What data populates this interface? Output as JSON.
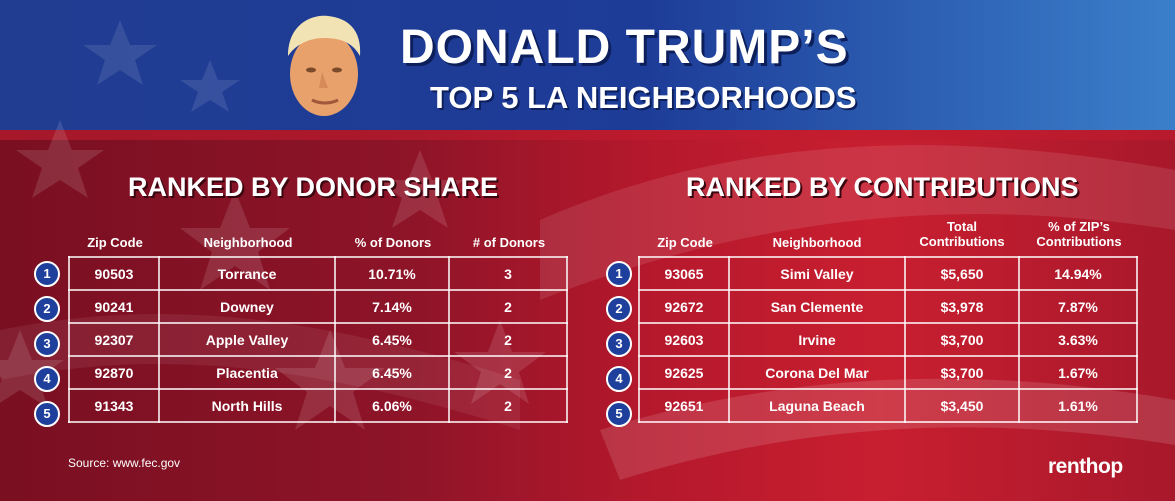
{
  "header": {
    "title_line1": "DONALD TRUMP’S",
    "title_line2": "TOP 5 LA NEIGHBORHOODS"
  },
  "left_table": {
    "title": "RANKED BY DONOR SHARE",
    "headers": [
      "Zip Code",
      "Neighborhood",
      "% of Donors",
      "# of Donors"
    ],
    "ranks": [
      "1",
      "2",
      "3",
      "4",
      "5"
    ],
    "rows": [
      [
        "90503",
        "Torrance",
        "10.71%",
        "3"
      ],
      [
        "90241",
        "Downey",
        "7.14%",
        "2"
      ],
      [
        "92307",
        "Apple Valley",
        "6.45%",
        "2"
      ],
      [
        "92870",
        "Placentia",
        "6.45%",
        "2"
      ],
      [
        "91343",
        "North Hills",
        "6.06%",
        "2"
      ]
    ]
  },
  "right_table": {
    "title": "RANKED BY CONTRIBUTIONS",
    "headers": [
      "Zip Code",
      "Neighborhood",
      "Total Contributions",
      "% of ZIP’s Contributions"
    ],
    "ranks": [
      "1",
      "2",
      "3",
      "4",
      "5"
    ],
    "rows": [
      [
        "93065",
        "Simi Valley",
        "$5,650",
        "14.94%"
      ],
      [
        "92672",
        "San Clemente",
        "$3,978",
        "7.87%"
      ],
      [
        "92603",
        "Irvine",
        "$3,700",
        "3.63%"
      ],
      [
        "92625",
        "Corona Del Mar",
        "$3,700",
        "1.67%"
      ],
      [
        "92651",
        "Laguna Beach",
        "$3,450",
        "1.61%"
      ]
    ]
  },
  "footer": {
    "source": "Source: www.fec.gov",
    "logo": "renthop"
  },
  "colors": {
    "header_blue": "#1d3f9a",
    "background_red": "#b5182c",
    "rank_badge": "#1f3f9c"
  }
}
